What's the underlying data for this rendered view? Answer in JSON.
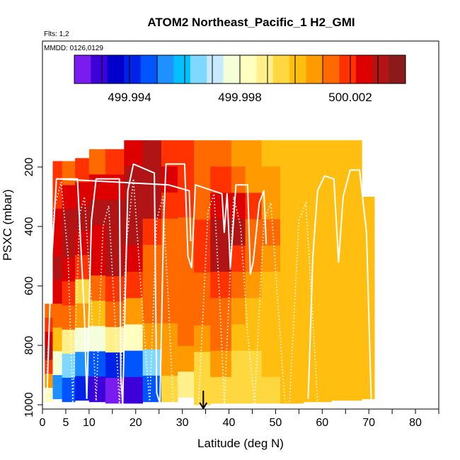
{
  "title": "ATOM2 Northeast_Pacific_1 H2_GMI",
  "flights_text": "Flts: 1,2",
  "dates_text": "MMDD: 0126,0129",
  "chart_data": {
    "type": "heatmap",
    "title": "ATOM2 Northeast_Pacific_1 H2_GMI",
    "xlabel": "Latitude (deg N)",
    "ylabel": "PSXC (mbar)",
    "xlim": [
      0,
      85
    ],
    "ylim": [
      1000,
      0
    ],
    "y_reversed": true,
    "x_ticks": [
      {
        "value": 0,
        "label": "0"
      },
      {
        "value": 5,
        "label": "5"
      },
      {
        "value": 10,
        "label": "10"
      },
      {
        "value": 20,
        "label": "20"
      },
      {
        "value": 30,
        "label": "30"
      },
      {
        "value": 40,
        "label": "40"
      },
      {
        "value": 50,
        "label": "50"
      },
      {
        "value": 60,
        "label": "60"
      },
      {
        "value": 70,
        "label": "70"
      },
      {
        "value": 80,
        "label": "80"
      }
    ],
    "x_minor_ticks": [
      15,
      25,
      35,
      45,
      55,
      65,
      75,
      85
    ],
    "y_ticks": [
      {
        "value": 200,
        "label": "200"
      },
      {
        "value": 400,
        "label": "400"
      },
      {
        "value": 600,
        "label": "600"
      },
      {
        "value": 800,
        "label": "800"
      },
      {
        "value": 1000,
        "label": "1000"
      }
    ],
    "colorbar": {
      "min": 499.992,
      "max": 500.004,
      "tick_values": [
        499.993,
        499.994,
        499.995,
        499.996,
        499.997,
        499.998,
        499.999,
        500.0,
        500.001,
        500.002,
        500.003
      ],
      "labels": [
        {
          "value": 499.994,
          "label": "499.994"
        },
        {
          "value": 499.998,
          "label": "499.998"
        },
        {
          "value": 500.002,
          "label": "500.002"
        }
      ],
      "colors": [
        "#7a1cf0",
        "#3d00d9",
        "#0000c8",
        "#0022e6",
        "#0055ff",
        "#1f90ff",
        "#00c0ff",
        "#7fd8ff",
        "#c8eaff",
        "#f4ffd8",
        "#ffffc0",
        "#fff08c",
        "#ffd840",
        "#ffbe10",
        "#ff9a00",
        "#ff6a00",
        "#ff3200",
        "#dc0000",
        "#b01414",
        "#8b1a1a"
      ]
    },
    "arrow_marker": {
      "lat": 34.5,
      "psxc": 1000
    },
    "grid": false,
    "legend": "none",
    "columns": [
      {
        "lat0": 0.5,
        "lat1": 2.2,
        "top": 660,
        "bottom": 990,
        "values": [
          500.0012,
          500.0018,
          500.0025,
          500.003,
          500.0022,
          500.001,
          499.9985
        ]
      },
      {
        "lat0": 2.2,
        "lat1": 4.2,
        "top": 180,
        "bottom": 980,
        "values": [
          500.0018,
          500.0022,
          500.0026,
          500.0028,
          500.003,
          500.0024,
          500.0015,
          500.0,
          499.9975,
          499.9955
        ]
      },
      {
        "lat0": 4.2,
        "lat1": 7.0,
        "top": 180,
        "bottom": 990,
        "values": [
          500.0016,
          500.0024,
          500.0029,
          500.0031,
          500.0027,
          500.002,
          500.0012,
          499.9992,
          499.9965,
          499.9945
        ]
      },
      {
        "lat0": 7.0,
        "lat1": 10.0,
        "top": 170,
        "bottom": 985,
        "values": [
          500.002,
          500.0027,
          500.0031,
          500.0026,
          500.0021,
          499.9998,
          500.0006,
          499.9978,
          499.9952,
          499.994
        ]
      },
      {
        "lat0": 10.0,
        "lat1": 13.5,
        "top": 140,
        "bottom": 990,
        "values": [
          500.0016,
          500.0023,
          500.003,
          500.0028,
          500.0025,
          500.0014,
          500.0004,
          499.998,
          499.9945,
          499.9932
        ]
      },
      {
        "lat0": 13.5,
        "lat1": 17.5,
        "top": 140,
        "bottom": 995,
        "values": [
          500.0018,
          500.0026,
          500.0032,
          500.0031,
          500.0029,
          500.0022,
          500.0012,
          499.999,
          499.994,
          499.9925
        ]
      },
      {
        "lat0": 17.5,
        "lat1": 21.5,
        "top": 110,
        "bottom": 995,
        "values": [
          500.0025,
          500.0031,
          500.0033,
          500.003,
          500.0027,
          500.0018,
          500.0008,
          499.9985,
          499.9945,
          499.993
        ]
      },
      {
        "lat0": 21.5,
        "lat1": 25.5,
        "top": 110,
        "bottom": 990,
        "values": [
          500.003,
          500.0034,
          500.0031,
          500.0022,
          500.0016,
          500.0013,
          500.0011,
          500.0006,
          499.9965,
          499.9945
        ]
      },
      {
        "lat0": 25.5,
        "lat1": 29.0,
        "top": 110,
        "bottom": 990,
        "values": [
          500.0022,
          500.0028,
          500.002,
          500.0016,
          500.0016,
          500.0015,
          500.0014,
          500.001,
          500.0006,
          499.9995
        ]
      },
      {
        "lat0": 29.0,
        "lat1": 32.5,
        "top": 110,
        "bottom": 975,
        "values": [
          500.002,
          500.0022,
          500.0018,
          500.0016,
          500.0015,
          500.0015,
          500.0014,
          500.0012,
          500.0008,
          499.9992
        ]
      },
      {
        "lat0": 32.5,
        "lat1": 36.0,
        "top": 110,
        "bottom": 1000,
        "values": [
          500.0012,
          500.0014,
          500.0016,
          500.0018,
          500.0019,
          500.0016,
          500.0012,
          500.0006,
          499.9998,
          499.9996
        ]
      },
      {
        "lat0": 36.0,
        "lat1": 40.5,
        "top": 110,
        "bottom": 995,
        "values": [
          500.0014,
          500.0018,
          500.0026,
          500.0034,
          500.003,
          500.002,
          500.0016,
          500.0012,
          500.0006,
          499.9998
        ]
      },
      {
        "lat0": 40.5,
        "lat1": 43.5,
        "top": 110,
        "bottom": 995,
        "values": [
          500.001,
          500.0016,
          500.0028,
          500.0031,
          500.002,
          500.0014,
          500.001,
          500.0002,
          499.9998,
          499.9997
        ]
      },
      {
        "lat0": 43.5,
        "lat1": 47.0,
        "top": 110,
        "bottom": 995,
        "values": [
          500.0006,
          500.001,
          500.0018,
          500.0016,
          500.0012,
          500.0008,
          500.0004,
          500.0,
          499.9998,
          499.9997
        ]
      },
      {
        "lat0": 47.0,
        "lat1": 51.0,
        "top": 110,
        "bottom": 995,
        "values": [
          500.0004,
          500.0006,
          500.0009,
          500.0012,
          500.0008,
          500.0004,
          500.0001,
          500.0,
          499.9999,
          499.9998
        ]
      },
      {
        "lat0": 51.0,
        "lat1": 56.0,
        "top": 110,
        "bottom": 995,
        "values": [
          500.0003,
          500.0004,
          500.0004,
          500.0004,
          500.0001,
          500.0,
          500.0,
          500.0,
          500.0,
          500.0
        ]
      },
      {
        "lat0": 56.0,
        "lat1": 62.0,
        "top": 110,
        "bottom": 990,
        "values": [
          500.0002,
          500.0001,
          500.0001,
          500.0001,
          500.0,
          500.0,
          500.0,
          500.0,
          500.0,
          500.0
        ]
      },
      {
        "lat0": 62.0,
        "lat1": 68.5,
        "top": 110,
        "bottom": 985,
        "values": [
          500.0001,
          500.0001,
          500.0,
          500.0,
          500.0,
          500.0,
          500.0,
          500.0,
          500.0,
          500.0
        ]
      },
      {
        "lat0": 68.5,
        "lat1": 71.2,
        "top": 300,
        "bottom": 980,
        "values": [
          500.0001,
          500.0,
          500.0,
          500.0,
          500.0,
          500.0,
          500.0,
          500.0
        ]
      }
    ],
    "flight_tracks": [
      {
        "style": "solid",
        "points": [
          [
            1.0,
            960
          ],
          [
            1.8,
            560
          ],
          [
            3.0,
            240
          ],
          [
            7.5,
            240
          ],
          [
            9.0,
            700
          ],
          [
            9.5,
            980
          ]
        ]
      },
      {
        "style": "solid",
        "points": [
          [
            9.5,
            980
          ],
          [
            10.5,
            380
          ],
          [
            11.5,
            240
          ],
          [
            16.5,
            240
          ],
          [
            16.8,
            900
          ],
          [
            17.2,
            998
          ]
        ]
      },
      {
        "style": "solid",
        "points": [
          [
            17.2,
            998
          ],
          [
            18.3,
            280
          ],
          [
            19.5,
            190
          ],
          [
            24.0,
            220
          ],
          [
            24.5,
            960
          ],
          [
            25.2,
            995
          ]
        ]
      },
      {
        "style": "solid",
        "points": [
          [
            25.2,
            995
          ],
          [
            26.0,
            380
          ],
          [
            26.5,
            190
          ],
          [
            30.5,
            190
          ],
          [
            31.2,
            500
          ],
          [
            32.0,
            540
          ]
        ]
      },
      {
        "style": "solid",
        "points": [
          [
            32.0,
            540
          ],
          [
            32.8,
            260
          ],
          [
            38.5,
            290
          ],
          [
            39.0,
            420
          ],
          [
            39.6,
            290
          ],
          [
            40.3,
            540
          ]
        ]
      },
      {
        "style": "solid",
        "points": [
          [
            40.3,
            540
          ],
          [
            41.5,
            260
          ],
          [
            44.0,
            260
          ],
          [
            44.6,
            560
          ],
          [
            45.2,
            520
          ]
        ]
      },
      {
        "style": "solid",
        "points": [
          [
            45.2,
            520
          ],
          [
            46.5,
            320
          ],
          [
            47.5,
            280
          ],
          [
            48.0,
            460
          ]
        ]
      },
      {
        "style": "solid",
        "points": [
          [
            3.0,
            240
          ],
          [
            27.0,
            260
          ],
          [
            31.5,
            280
          ],
          [
            31.8,
            450
          ]
        ]
      },
      {
        "style": "dotted",
        "points": [
          [
            1.0,
            900
          ],
          [
            2.5,
            340
          ],
          [
            4.0,
            250
          ],
          [
            5.5,
            500
          ],
          [
            6.5,
            990
          ]
        ]
      },
      {
        "style": "dotted",
        "points": [
          [
            6.5,
            990
          ],
          [
            8.0,
            360
          ],
          [
            9.0,
            300
          ],
          [
            10.5,
            660
          ],
          [
            11.5,
            985
          ]
        ]
      },
      {
        "style": "dotted",
        "points": [
          [
            11.5,
            985
          ],
          [
            13.0,
            400
          ],
          [
            14.2,
            330
          ],
          [
            15.5,
            700
          ],
          [
            16.5,
            995
          ]
        ]
      },
      {
        "style": "dotted",
        "points": [
          [
            16.5,
            995
          ],
          [
            18.0,
            460
          ],
          [
            19.5,
            240
          ],
          [
            21.5,
            690
          ],
          [
            23.0,
            995
          ]
        ]
      },
      {
        "style": "dotted",
        "points": [
          [
            23.0,
            995
          ],
          [
            24.5,
            380
          ],
          [
            25.8,
            300
          ],
          [
            27.0,
            650
          ],
          [
            28.0,
            990
          ]
        ]
      },
      {
        "style": "dotted",
        "points": [
          [
            33.5,
            990
          ],
          [
            35.5,
            350
          ],
          [
            36.8,
            290
          ],
          [
            38.0,
            640
          ],
          [
            39.0,
            995
          ]
        ]
      },
      {
        "style": "dotted",
        "points": [
          [
            39.0,
            995
          ],
          [
            41.0,
            300
          ],
          [
            42.5,
            400
          ],
          [
            44.0,
            760
          ],
          [
            45.5,
            995
          ]
        ]
      },
      {
        "style": "dotted",
        "points": [
          [
            45.5,
            995
          ],
          [
            47.5,
            380
          ],
          [
            49.0,
            320
          ],
          [
            50.5,
            660
          ],
          [
            52.0,
            990
          ]
        ]
      },
      {
        "style": "dotted",
        "points": [
          [
            53.0,
            990
          ],
          [
            55.0,
            380
          ],
          [
            56.5,
            320
          ],
          [
            58.0,
            720
          ],
          [
            59.0,
            990
          ]
        ]
      },
      {
        "style": "solid",
        "points": [
          [
            57.0,
            980
          ],
          [
            58.0,
            500
          ],
          [
            59.0,
            280
          ],
          [
            60.5,
            230
          ],
          [
            62.5,
            240
          ],
          [
            63.5,
            520
          ],
          [
            64.5,
            300
          ],
          [
            66.0,
            210
          ],
          [
            68.0,
            210
          ],
          [
            69.5,
            420
          ],
          [
            70.5,
            980
          ]
        ]
      }
    ]
  }
}
